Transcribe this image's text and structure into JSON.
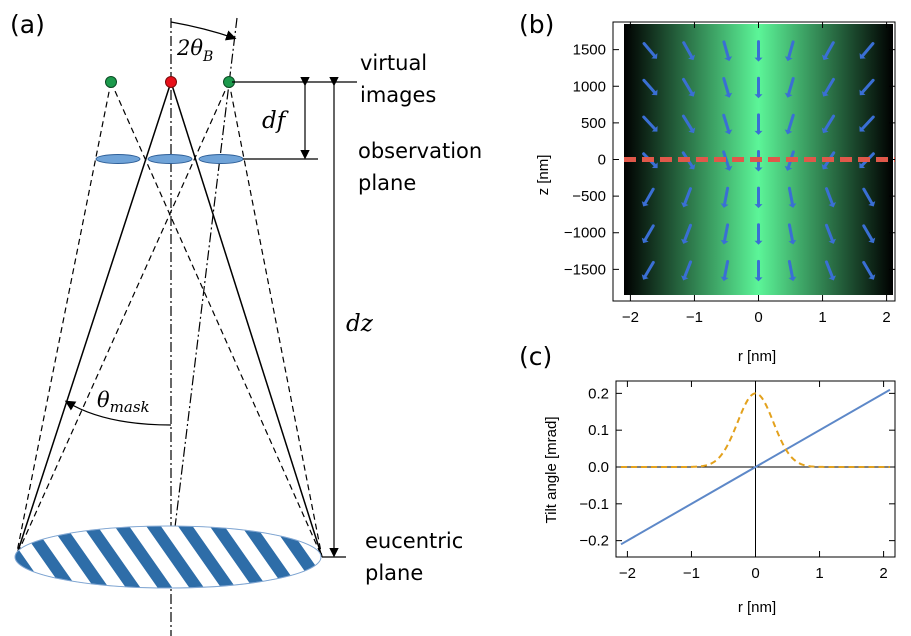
{
  "panel_labels": {
    "a": "(a)",
    "b": "(b)",
    "c": "(c)"
  },
  "diagram_a": {
    "label_virtual_line1": "virtual",
    "label_virtual_line2": "images",
    "label_observation_line1": "observation",
    "label_observation_line2": "plane",
    "label_eucentric_line1": "eucentric",
    "label_eucentric_line2": "plane",
    "label_df": "df",
    "label_dz": "dz",
    "label_angle_2thetaB": "2θ",
    "label_angle_2thetaB_sub": "B",
    "label_theta_mask": "θ",
    "label_theta_mask_sub": "mask",
    "colors": {
      "center_image": "#e8101a",
      "side_image": "#1c9a4c",
      "lens": "#6fa3d8",
      "fringe": "#2e6da8"
    }
  },
  "chart_data": [
    {
      "id": "b",
      "type": "heatmap",
      "title": "",
      "xlabel": "r [nm]",
      "ylabel": "z [nm]",
      "xlim": [
        -2.1,
        2.1
      ],
      "ylim": [
        -1850,
        1850
      ],
      "x_ticks": [
        -2,
        -1,
        0,
        1,
        2
      ],
      "x_tick_labels": [
        "−2",
        "−1",
        "0",
        "1",
        "2"
      ],
      "y_ticks": [
        1500,
        1000,
        500,
        0,
        -500,
        -1000,
        -1500
      ],
      "y_tick_labels": [
        "1500",
        "1000",
        "500",
        "0",
        "−500",
        "−1000",
        "−1500"
      ],
      "annotation": "dashed line at z = 0",
      "colors": {
        "field": "#5cf598",
        "arrow": "#3a6fd4",
        "dashed": "#e0584a"
      }
    },
    {
      "id": "c",
      "type": "line",
      "title": "",
      "xlabel": "r [nm]",
      "ylabel": "Tilt angle [mrad]",
      "xlim": [
        -2.1,
        2.1
      ],
      "ylim": [
        -0.22,
        0.22
      ],
      "x_ticks": [
        -2,
        -1,
        0,
        1,
        2
      ],
      "x_tick_labels": [
        "−2",
        "−1",
        "0",
        "1",
        "2"
      ],
      "y_ticks": [
        0.2,
        0.1,
        0.0,
        -0.1,
        -0.2
      ],
      "y_tick_labels": [
        "0.2",
        "0.1",
        "0.0",
        "−0.1",
        "−0.2"
      ],
      "series": [
        {
          "name": "linear tilt",
          "style": "solid",
          "color": "#5d88c8",
          "x": [
            -2.1,
            2.1
          ],
          "y": [
            -0.21,
            0.21
          ]
        },
        {
          "name": "gaussian tilt",
          "style": "dashed",
          "color": "#e3a11c",
          "peak": 0.2,
          "sigma": 0.28
        }
      ]
    }
  ]
}
